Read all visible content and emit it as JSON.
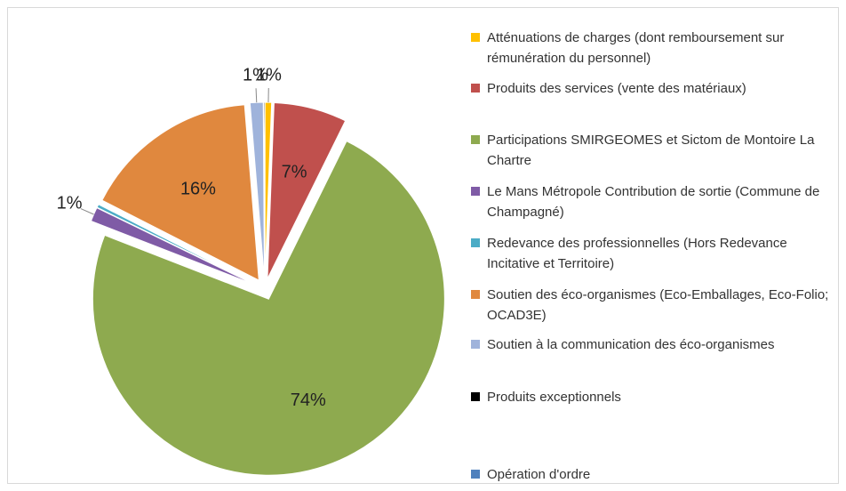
{
  "chart_data": {
    "type": "pie",
    "categories": [
      "Atténuations de charges (dont remboursement sur rémunération du personnel)",
      "Produits des services (vente des matériaux)",
      "Participations SMIRGEOMES et Sictom de Montoire La Chartre",
      "Le Mans Métropole Contribution de sortie (Commune de Champagné)",
      "Redevance des professionnelles (Hors Redevance Incitative et Territoire)",
      "Soutien des éco-organismes (Eco-Emballages, Eco-Folio; OCAD3E)",
      "Soutien à la communication des éco-organismes",
      "Produits exceptionnels",
      "Opération d'ordre"
    ],
    "values": [
      0.6,
      6.7,
      73.6,
      1.3,
      0.3,
      16.2,
      1.2,
      0.1,
      0
    ],
    "value_labels": [
      "1%",
      "7%",
      "74%",
      "1%",
      null,
      "16%",
      "1%",
      null,
      null
    ],
    "colors": [
      "#ffc000",
      "#c0504d",
      "#8eaa4f",
      "#7f5ba6",
      "#4bacc6",
      "#e0883e",
      "#9fb3db",
      "#000000",
      "#4f81bd"
    ],
    "legend": "right"
  }
}
